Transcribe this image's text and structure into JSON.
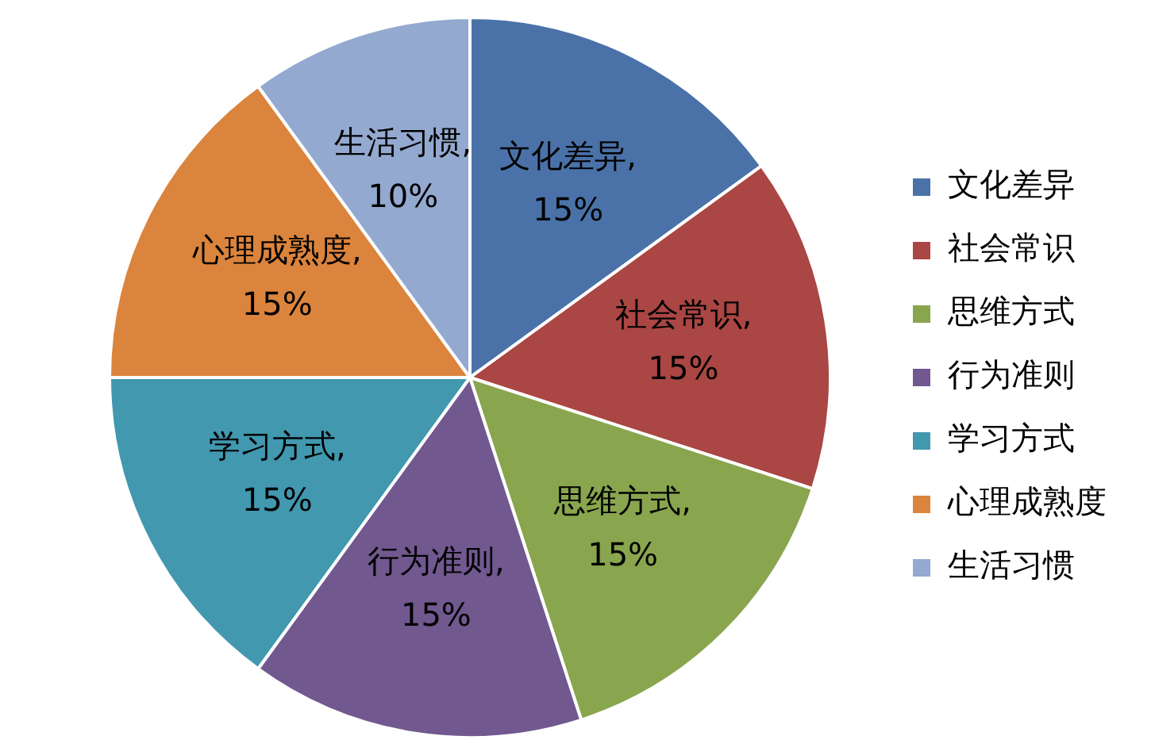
{
  "chart_data": {
    "type": "pie",
    "categories": [
      "文化差异",
      "社会常识",
      "思维方式",
      "行为准则",
      "学习方式",
      "心理成熟度",
      "生活习惯"
    ],
    "values": [
      15,
      15,
      15,
      15,
      15,
      15,
      10
    ],
    "colors": [
      "#4a72a8",
      "#aa4643",
      "#89a54e",
      "#71588f",
      "#4198af",
      "#db843d",
      "#93a9cf"
    ],
    "value_labels": [
      "文化差异, 15%",
      "社会常识, 15%",
      "思维方式, 15%",
      "行为准则, 15%",
      "学习方式, 15%",
      "心理成熟度, 15%",
      "生活习惯, 10%"
    ],
    "legend": "right"
  }
}
